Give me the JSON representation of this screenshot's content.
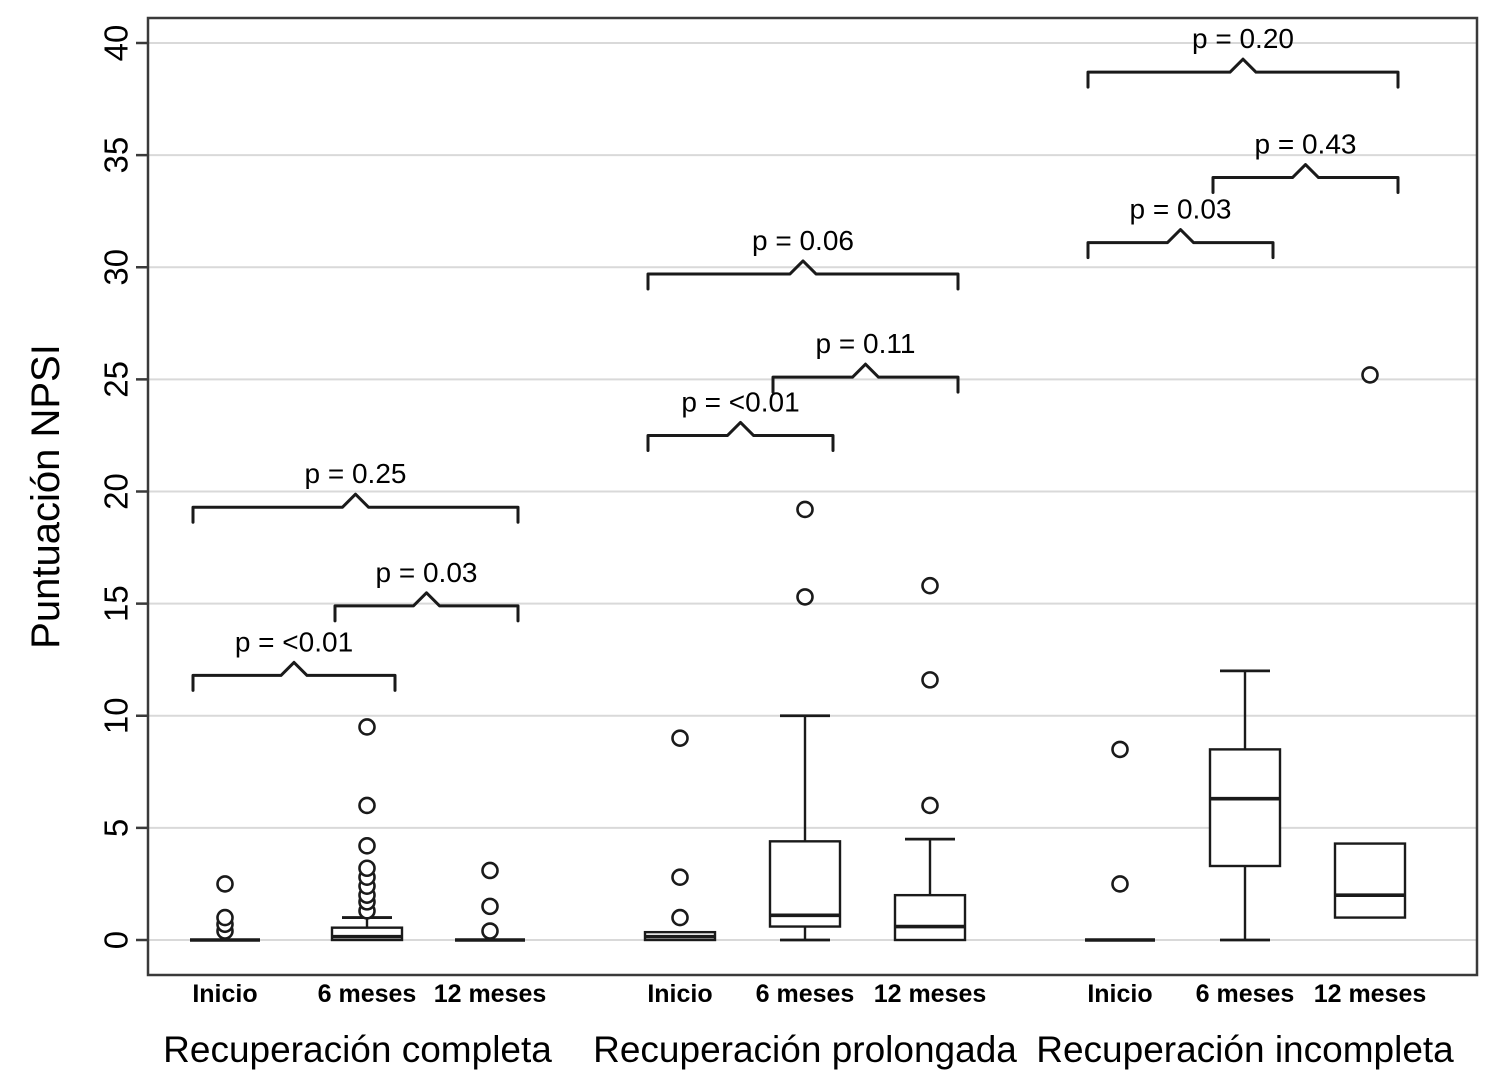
{
  "figure": {
    "title": "",
    "background": "#ffffff"
  },
  "chart_data": {
    "type": "boxplot",
    "title": "",
    "xlabel": "",
    "ylabel": "Puntuación NPSI",
    "ylim": [
      0,
      40
    ],
    "yticks": [
      0,
      5,
      10,
      15,
      20,
      25,
      30,
      35,
      40
    ],
    "grid": "horizontal",
    "legend": "none",
    "colors": {
      "box": "#1a1a1a",
      "grid": "#d9d9d9",
      "border": "#3a3a3a",
      "text": "#000000",
      "fill": "#ffffff"
    },
    "groups": [
      {
        "label": "Recuperación completa",
        "boxes": [
          {
            "label": "Inicio",
            "whisker_low": 0,
            "q1": 0,
            "median": 0,
            "q3": 0,
            "whisker_high": 0,
            "outliers": [
              0.4,
              0.7,
              1.0,
              2.5
            ]
          },
          {
            "label": "6 meses",
            "whisker_low": 0,
            "q1": 0,
            "median": 0.15,
            "q3": 0.55,
            "whisker_high": 1.0,
            "outliers": [
              1.3,
              1.7,
              2.0,
              2.4,
              2.8,
              3.2,
              4.2,
              6.0,
              9.5
            ]
          },
          {
            "label": "12 meses",
            "whisker_low": 0,
            "q1": 0,
            "median": 0,
            "q3": 0,
            "whisker_high": 0,
            "outliers": [
              0.4,
              1.5,
              3.1
            ]
          }
        ],
        "comparisons": [
          {
            "from": 0,
            "to": 1,
            "y": 11.8,
            "label": "p = <0.01"
          },
          {
            "from": 1,
            "to": 2,
            "y": 14.9,
            "label": "p = 0.03"
          },
          {
            "from": 0,
            "to": 2,
            "y": 19.3,
            "label": "p = 0.25"
          }
        ]
      },
      {
        "label": "Recuperación prolongada",
        "boxes": [
          {
            "label": "Inicio",
            "whisker_low": 0,
            "q1": 0,
            "median": 0.15,
            "q3": 0.35,
            "whisker_high": 0.35,
            "outliers": [
              1.0,
              2.8,
              9.0
            ]
          },
          {
            "label": "6 meses",
            "whisker_low": 0,
            "q1": 0.6,
            "median": 1.1,
            "q3": 4.4,
            "whisker_high": 10.0,
            "outliers": [
              15.3,
              19.2
            ]
          },
          {
            "label": "12 meses",
            "whisker_low": 0,
            "q1": 0,
            "median": 0.6,
            "q3": 2.0,
            "whisker_high": 4.5,
            "outliers": [
              6.0,
              11.6,
              15.8
            ]
          }
        ],
        "comparisons": [
          {
            "from": 0,
            "to": 1,
            "y": 22.5,
            "label": "p = <0.01"
          },
          {
            "from": 1,
            "to": 2,
            "y": 25.1,
            "label": "p = 0.11"
          },
          {
            "from": 0,
            "to": 2,
            "y": 29.7,
            "label": "p = 0.06"
          }
        ]
      },
      {
        "label": "Recuperación incompleta",
        "boxes": [
          {
            "label": "Inicio",
            "whisker_low": 0,
            "q1": 0,
            "median": 0,
            "q3": 0,
            "whisker_high": 0,
            "outliers": [
              2.5,
              8.5
            ]
          },
          {
            "label": "6 meses",
            "whisker_low": 0,
            "q1": 3.3,
            "median": 6.3,
            "q3": 8.5,
            "whisker_high": 12.0,
            "outliers": []
          },
          {
            "label": "12 meses",
            "whisker_low": 1.0,
            "q1": 1.0,
            "median": 2.0,
            "q3": 4.3,
            "whisker_high": 4.3,
            "outliers": [
              25.2
            ]
          }
        ],
        "comparisons": [
          {
            "from": 0,
            "to": 1,
            "y": 31.1,
            "label": "p = 0.03"
          },
          {
            "from": 1,
            "to": 2,
            "y": 34.0,
            "label": "p = 0.43"
          },
          {
            "from": 0,
            "to": 2,
            "y": 38.7,
            "label": "p = 0.20"
          }
        ]
      }
    ]
  }
}
